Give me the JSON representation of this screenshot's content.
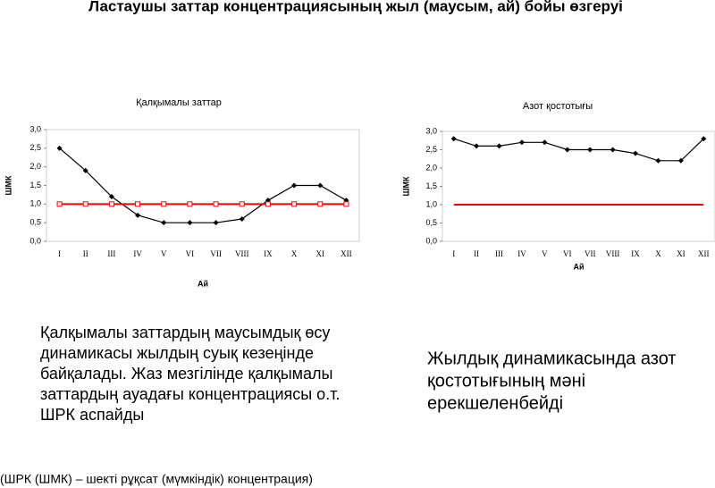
{
  "title": "Ластаушы заттар концентрациясының жыл (маусым, ай) бойы өзгеруі",
  "chart_data": [
    {
      "type": "line",
      "title": "Қалқымалы заттар",
      "y_label": "ШМК",
      "x_label": "Ай",
      "categories": [
        "I",
        "II",
        "III",
        "IV",
        "V",
        "VI",
        "VII",
        "VIII",
        "IX",
        "X",
        "XI",
        "XII"
      ],
      "series": [
        {
          "color": "#000000",
          "marker": "diamond",
          "values": [
            2.5,
            1.9,
            1.2,
            0.7,
            0.5,
            0.5,
            0.5,
            0.6,
            1.1,
            1.5,
            1.5,
            1.1
          ]
        },
        {
          "color": "#ff0000",
          "marker": "square",
          "values": [
            1.0,
            1.0,
            1.0,
            1.0,
            1.0,
            1.0,
            1.0,
            1.0,
            1.0,
            1.0,
            1.0,
            1.0
          ]
        }
      ],
      "ylim": [
        0,
        3
      ],
      "yticks": [
        {
          "value": 0,
          "label": "0,0"
        },
        {
          "value": 0.5,
          "label": "0,5"
        },
        {
          "value": 1,
          "label": "1,0"
        },
        {
          "value": 1.5,
          "label": "1,5"
        },
        {
          "value": 2,
          "label": "2,0"
        },
        {
          "value": 2.5,
          "label": "2,5"
        },
        {
          "value": 3,
          "label": "3,0"
        }
      ]
    },
    {
      "type": "line",
      "title": "Азот қостотығы",
      "y_label": "ШМК",
      "x_label": "Ай",
      "categories": [
        "I",
        "II",
        "III",
        "IV",
        "V",
        "VI",
        "VII",
        "VIII",
        "IX",
        "X",
        "XI",
        "XII"
      ],
      "series": [
        {
          "color": "#000000",
          "marker": "diamond",
          "values": [
            2.8,
            2.6,
            2.6,
            2.7,
            2.7,
            2.5,
            2.5,
            2.5,
            2.4,
            2.2,
            2.2,
            2.8
          ]
        },
        {
          "color": "#ff0000",
          "marker": "none",
          "values": [
            1.0,
            1.0,
            1.0,
            1.0,
            1.0,
            1.0,
            1.0,
            1.0,
            1.0,
            1.0,
            1.0,
            1.0
          ]
        }
      ],
      "ylim": [
        0,
        3
      ],
      "yticks": [
        {
          "value": 0,
          "label": "0,0"
        },
        {
          "value": 0.5,
          "label": "0,5"
        },
        {
          "value": 1,
          "label": "1,0"
        },
        {
          "value": 1.5,
          "label": "1,5"
        },
        {
          "value": 2,
          "label": "2,0"
        },
        {
          "value": 2.5,
          "label": "2,5"
        },
        {
          "value": 3,
          "label": "3,0"
        }
      ]
    }
  ],
  "captions": [
    [
      "Қалқымалы заттардың маусымдық өсу",
      "динамикасы жылдың суық кезеңінде",
      "байқалады. Жаз мезгілінде қалқымалы",
      "заттардың ауадағы концентрациясы о.т.",
      "ШРК аспайды"
    ],
    [
      "Жылдық динамикасында азот",
      "қостотығының мәні",
      "ерекшеленбейді"
    ]
  ],
  "footnote": "(ШРК (ШМК) – шекті рұқсат (мүмкіндік) концентрация)"
}
